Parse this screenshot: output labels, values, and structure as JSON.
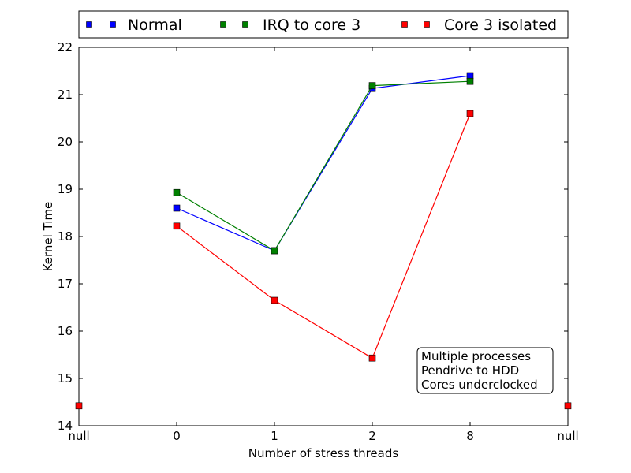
{
  "chart_data": {
    "type": "line",
    "title": "",
    "xlabel": "Number of stress threads",
    "ylabel": "Kernel Time",
    "categories": [
      "null",
      "0",
      "1",
      "2",
      "8",
      "null"
    ],
    "ylim": [
      14,
      22
    ],
    "yticks": [
      14,
      15,
      16,
      17,
      18,
      19,
      20,
      21,
      22
    ],
    "grid": false,
    "legend_position": "top, above plot",
    "series": [
      {
        "name": "Normal",
        "color": "#0000ff",
        "marker": "square",
        "values": [
          null,
          18.6,
          17.7,
          21.13,
          21.4,
          null
        ]
      },
      {
        "name": "IRQ to core 3",
        "color": "#008000",
        "marker": "square",
        "values": [
          null,
          18.93,
          17.7,
          21.19,
          21.28,
          null
        ]
      },
      {
        "name": "Core 3 isolated",
        "color": "#ff0000",
        "marker": "square",
        "values": [
          14.42,
          18.22,
          16.65,
          15.43,
          20.6,
          14.42
        ]
      }
    ],
    "annotation": {
      "lines": [
        "Multiple processes",
        "Pendrive to HDD",
        "Cores underclocked"
      ],
      "position": "lower-right"
    }
  }
}
